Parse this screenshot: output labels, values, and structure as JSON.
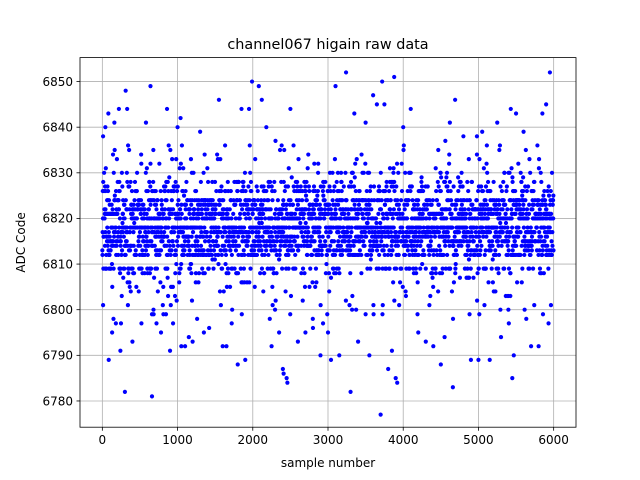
{
  "chart_data": {
    "type": "scatter",
    "title": "channel067 higain raw data",
    "xlabel": "sample number",
    "ylabel": "ADC Code",
    "xlim": [
      -297,
      6297
    ],
    "ylim": [
      6774.25,
      6855.25
    ],
    "xticks": [
      0,
      1000,
      2000,
      3000,
      4000,
      5000,
      6000
    ],
    "yticks": [
      6780,
      6790,
      6800,
      6810,
      6820,
      6830,
      6840,
      6850
    ],
    "grid": true,
    "marker_color": "#0000ff",
    "series": [
      {
        "n_samples": 6000,
        "bands": [
          6799,
          6800,
          6801,
          6804,
          6805,
          6806,
          6808,
          6809,
          6812,
          6813,
          6814,
          6815,
          6816,
          6817,
          6818,
          6820,
          6821,
          6822,
          6823,
          6824,
          6826,
          6827,
          6828,
          6830,
          6831,
          6832,
          6833,
          6836,
          6837
        ],
        "points": [
          [
            10,
            6838
          ],
          [
            40,
            6840
          ],
          [
            80,
            6843
          ],
          [
            85,
            6789
          ],
          [
            130,
            6795
          ],
          [
            160,
            6841
          ],
          [
            180,
            6797
          ],
          [
            220,
            6844
          ],
          [
            240,
            6791
          ],
          [
            300,
            6782
          ],
          [
            310,
            6848
          ],
          [
            330,
            6844
          ],
          [
            400,
            6793
          ],
          [
            520,
            6797
          ],
          [
            580,
            6841
          ],
          [
            640,
            6849
          ],
          [
            660,
            6781
          ],
          [
            720,
            6797
          ],
          [
            780,
            6795
          ],
          [
            860,
            6844
          ],
          [
            900,
            6791
          ],
          [
            940,
            6797
          ],
          [
            1000,
            6840
          ],
          [
            1040,
            6842
          ],
          [
            1050,
            6792
          ],
          [
            1100,
            6792
          ],
          [
            1150,
            6794
          ],
          [
            1200,
            6793
          ],
          [
            1300,
            6839
          ],
          [
            1350,
            6795
          ],
          [
            1420,
            6796
          ],
          [
            1550,
            6846
          ],
          [
            1600,
            6792
          ],
          [
            1650,
            6792
          ],
          [
            1720,
            6797
          ],
          [
            1800,
            6788
          ],
          [
            1850,
            6844
          ],
          [
            1900,
            6789
          ],
          [
            1950,
            6844
          ],
          [
            1990,
            6850
          ],
          [
            2080,
            6849
          ],
          [
            2120,
            6846
          ],
          [
            2180,
            6840
          ],
          [
            2250,
            6792
          ],
          [
            2350,
            6795
          ],
          [
            2400,
            6787
          ],
          [
            2410,
            6786
          ],
          [
            2450,
            6785
          ],
          [
            2460,
            6784
          ],
          [
            2500,
            6844
          ],
          [
            2600,
            6793
          ],
          [
            2700,
            6795
          ],
          [
            2800,
            6796
          ],
          [
            2900,
            6790
          ],
          [
            3000,
            6795
          ],
          [
            3040,
            6789
          ],
          [
            3100,
            6849
          ],
          [
            3150,
            6790
          ],
          [
            3240,
            6852
          ],
          [
            3300,
            6782
          ],
          [
            3350,
            6843
          ],
          [
            3400,
            6793
          ],
          [
            3500,
            6841
          ],
          [
            3550,
            6790
          ],
          [
            3600,
            6847
          ],
          [
            3650,
            6845
          ],
          [
            3700,
            6777
          ],
          [
            3720,
            6850
          ],
          [
            3750,
            6845
          ],
          [
            3800,
            6787
          ],
          [
            3850,
            6791
          ],
          [
            3880,
            6851
          ],
          [
            3900,
            6785
          ],
          [
            3920,
            6784
          ],
          [
            4000,
            6840
          ],
          [
            4100,
            6844
          ],
          [
            4200,
            6795
          ],
          [
            4300,
            6793
          ],
          [
            4400,
            6792
          ],
          [
            4500,
            6788
          ],
          [
            4550,
            6794
          ],
          [
            4620,
            6841
          ],
          [
            4660,
            6783
          ],
          [
            4690,
            6846
          ],
          [
            4800,
            6838
          ],
          [
            4900,
            6789
          ],
          [
            4980,
            6838
          ],
          [
            5000,
            6789
          ],
          [
            5050,
            6839
          ],
          [
            5150,
            6789
          ],
          [
            5250,
            6841
          ],
          [
            5300,
            6794
          ],
          [
            5430,
            6844
          ],
          [
            5450,
            6785
          ],
          [
            5470,
            6790
          ],
          [
            5500,
            6843
          ],
          [
            5600,
            6839
          ],
          [
            5700,
            6792
          ],
          [
            5800,
            6792
          ],
          [
            5850,
            6843
          ],
          [
            5900,
            6845
          ],
          [
            5950,
            6852
          ]
        ]
      }
    ]
  }
}
